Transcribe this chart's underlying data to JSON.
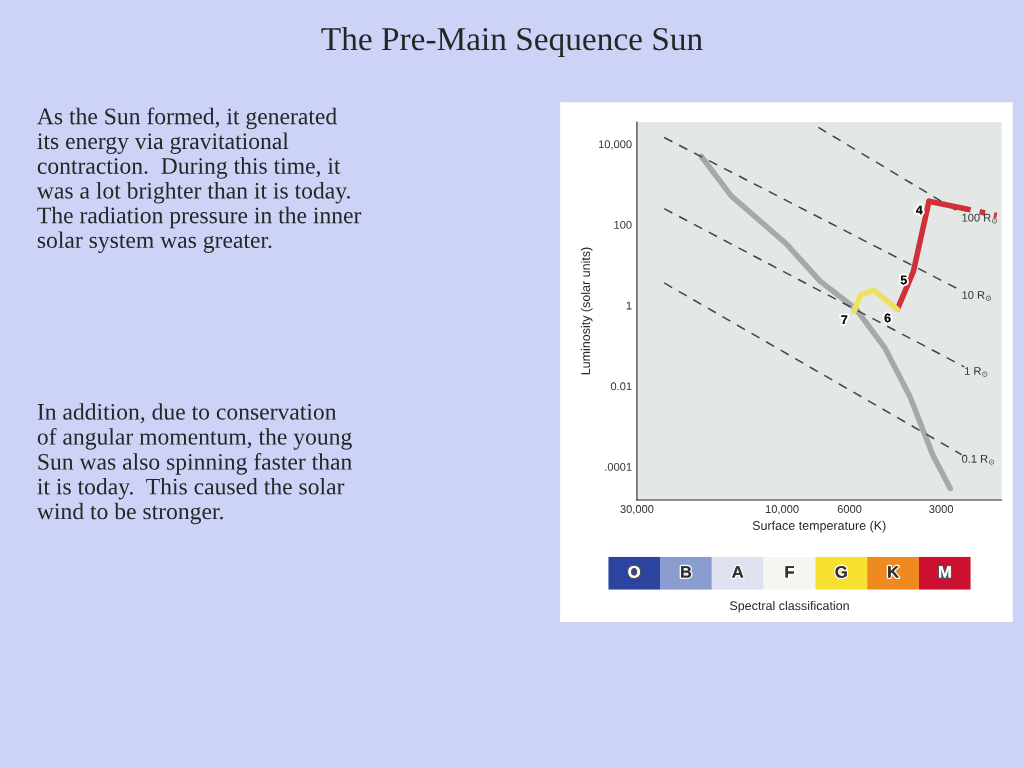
{
  "chart_data": [
    {
      "type": "line",
      "title": "The Pre-Main Sequence Sun",
      "xlabel": "Surface temperature (K)",
      "ylabel": "Luminosity (solar units)",
      "log": "xy",
      "xlim": [
        30000,
        1900
      ],
      "ylim": [
        1.5e-05,
        35000
      ],
      "xticks": [
        {
          "value": 30000,
          "label": "30,000"
        },
        {
          "value": 10000,
          "label": "10,000"
        },
        6000,
        3000
      ],
      "yticks": [
        {
          "value": 10000,
          "label": "10,000"
        },
        100,
        1,
        0.01,
        {
          "value": 0.0001,
          "label": ".0001"
        }
      ],
      "grid": false,
      "legend": false,
      "marker": "none",
      "series": [
        {
          "color": "#a3aaa9",
          "line_style": "solid",
          "x": [
            18400,
            14700,
            9700,
            7500,
            5700,
            4600,
            3800,
            3200,
            2800
          ],
          "values": [
            4900,
            520,
            34,
            4,
            0.8,
            0.09,
            0.0055,
            0.0002,
            2.9e-05
          ]
        },
        {
          "name": "100 R$_{⊙}$",
          "color": "#444444",
          "line_style": "dashed",
          "x": [
            7600,
            2570
          ],
          "values": [
            26000,
            190
          ]
        },
        {
          "name": "10 R$_{⊙}$",
          "color": "#444444",
          "line_style": "dashed",
          "x": [
            24400,
            2570
          ],
          "values": [
            14500,
            2.3
          ]
        },
        {
          "name": "1 R$_{⊙}$",
          "color": "#444444",
          "line_style": "dashed",
          "x": [
            24400,
            2520
          ],
          "values": [
            250,
            0.03
          ]
        },
        {
          "name": "0.1 R$_{⊙}$",
          "color": "#444444",
          "line_style": "dashed",
          "x": [
            24400,
            2570
          ],
          "values": [
            3.6,
            0.0002
          ]
        },
        {
          "color": "#d0303a",
          "line_style": "solid",
          "x": [
            3290,
            2500
          ],
          "values": [
            380,
            250
          ]
        },
        {
          "color": "#d0303a",
          "line_style": "dotted",
          "x": [
            2500,
            1970
          ],
          "values": [
            250,
            170
          ]
        },
        {
          "color": "#d0303a",
          "line_style": "solid",
          "x": [
            3290,
            3700,
            4180
          ],
          "values": [
            380,
            7,
            0.8
          ]
        },
        {
          "color": "#f0e060",
          "line_style": "solid",
          "x": [
            4180,
            5000,
            5530,
            5800
          ],
          "values": [
            0.8,
            2.4,
            1.8,
            0.72
          ]
        }
      ],
      "annotations": [
        {
          "text": "4",
          "x": 3290,
          "y": 380
        },
        {
          "text": "5",
          "x": 3700,
          "y": 7
        },
        {
          "text": "6",
          "x": 4180,
          "y": 0.8
        },
        {
          "text": "7",
          "x": 5800,
          "y": 0.72
        },
        "As the Sun formed, it generated\nits energy via gravitational\ncontraction.  During this time, it\nwas a lot brighter than it is today.\nThe radiation pressure in the inner\nsolar system was greater.",
        "In addition, due to conservation\nof angular momentum, the young\nSun was also spinning faster than\nit is today.  This caused the solar\nwind to be stronger."
      ]
    },
    {
      "type": "other",
      "xlabel": "Spectral classification",
      "categories": [
        "O",
        "B",
        "A",
        "F",
        "G",
        "K",
        "M"
      ],
      "colors": [
        "#2c44a0",
        "#8a9cd0",
        "#dfe2f0",
        "#f6f6f0",
        "#f6e030",
        "#ee8a20",
        "#cc1030"
      ]
    }
  ]
}
